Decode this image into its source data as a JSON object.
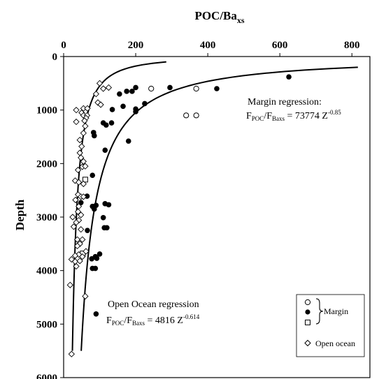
{
  "chart_data": {
    "type": "scatter",
    "title": "",
    "xlabel_main": "POC/Ba",
    "xlabel_sub": "xs",
    "ylabel": "Depth",
    "xlim": [
      0,
      850
    ],
    "ylim": [
      0,
      6000
    ],
    "y_inverted": true,
    "x_axis_position": "top",
    "xticks": [
      0,
      200,
      400,
      600,
      800
    ],
    "yticks": [
      0,
      1000,
      2000,
      3000,
      4000,
      5000,
      6000
    ],
    "xtick_labels": [
      "0",
      "200",
      "400",
      "600",
      "800"
    ],
    "ytick_labels": [
      "0",
      "1000",
      "2000",
      "3000",
      "4000",
      "5000",
      "6000"
    ],
    "grid": false,
    "legend_position": "bottom-right",
    "series": [
      {
        "name": "",
        "group": "margin",
        "marker": "open-circle",
        "points": [
          [
            243,
            600
          ],
          [
            368,
            600
          ],
          [
            340,
            1100
          ],
          [
            368,
            1100
          ]
        ]
      },
      {
        "name": "",
        "group": "margin",
        "marker": "filled-circle",
        "points": [
          [
            625,
            380
          ],
          [
            425,
            600
          ],
          [
            200,
            580
          ],
          [
            295,
            580
          ],
          [
            175,
            650
          ],
          [
            190,
            650
          ],
          [
            155,
            700
          ],
          [
            225,
            880
          ],
          [
            165,
            930
          ],
          [
            200,
            980
          ],
          [
            200,
            1030
          ],
          [
            135,
            990
          ],
          [
            110,
            1240
          ],
          [
            133,
            1240
          ],
          [
            118,
            1280
          ],
          [
            83,
            1420
          ],
          [
            85,
            1480
          ],
          [
            115,
            1750
          ],
          [
            180,
            1580
          ],
          [
            80,
            2220
          ],
          [
            48,
            2730
          ],
          [
            65,
            2610
          ],
          [
            90,
            2780
          ],
          [
            80,
            2800
          ],
          [
            85,
            2850
          ],
          [
            115,
            2750
          ],
          [
            125,
            2770
          ],
          [
            110,
            3010
          ],
          [
            113,
            3200
          ],
          [
            120,
            3200
          ],
          [
            66,
            3250
          ],
          [
            100,
            3690
          ],
          [
            88,
            3740
          ],
          [
            78,
            3780
          ],
          [
            92,
            3770
          ],
          [
            80,
            3960
          ],
          [
            88,
            3960
          ],
          [
            90,
            4810
          ]
        ]
      },
      {
        "name": "",
        "group": "margin",
        "marker": "open-square",
        "points": [
          [
            60,
            2300
          ],
          [
            53,
            3680
          ]
        ]
      },
      {
        "name": "Open ocean",
        "group": "open-ocean",
        "marker": "open-diamond",
        "points": [
          [
            100,
            500
          ],
          [
            110,
            600
          ],
          [
            125,
            580
          ],
          [
            90,
            700
          ],
          [
            95,
            860
          ],
          [
            103,
            900
          ],
          [
            55,
            970
          ],
          [
            66,
            970
          ],
          [
            35,
            1000
          ],
          [
            50,
            1050
          ],
          [
            55,
            1100
          ],
          [
            65,
            1100
          ],
          [
            62,
            1150
          ],
          [
            35,
            1220
          ],
          [
            58,
            1200
          ],
          [
            60,
            1300
          ],
          [
            55,
            1430
          ],
          [
            45,
            1560
          ],
          [
            50,
            1680
          ],
          [
            45,
            1800
          ],
          [
            48,
            1890
          ],
          [
            55,
            1960
          ],
          [
            52,
            2060
          ],
          [
            40,
            2120
          ],
          [
            60,
            2050
          ],
          [
            32,
            2320
          ],
          [
            42,
            2350
          ],
          [
            55,
            2380
          ],
          [
            40,
            2580
          ],
          [
            48,
            2620
          ],
          [
            55,
            2620
          ],
          [
            33,
            2680
          ],
          [
            42,
            2800
          ],
          [
            40,
            2900
          ],
          [
            48,
            2960
          ],
          [
            25,
            3000
          ],
          [
            42,
            3060
          ],
          [
            35,
            3100
          ],
          [
            28,
            3180
          ],
          [
            48,
            3230
          ],
          [
            38,
            3420
          ],
          [
            52,
            3420
          ],
          [
            45,
            3500
          ],
          [
            38,
            3540
          ],
          [
            62,
            3640
          ],
          [
            42,
            3700
          ],
          [
            32,
            3720
          ],
          [
            52,
            3740
          ],
          [
            22,
            3790
          ],
          [
            32,
            3830
          ],
          [
            45,
            3820
          ],
          [
            35,
            3920
          ],
          [
            18,
            4270
          ],
          [
            60,
            4480
          ],
          [
            22,
            5560
          ]
        ]
      }
    ],
    "regressions": [
      {
        "name": "Margin regression",
        "coef": 73774,
        "exponent": -0.85,
        "z_range": [
          200,
          5500
        ],
        "label_line1": "Margin regression:",
        "label_line2_prefix": "F",
        "label_line2_sub1": "POC",
        "label_line2_mid": "/F",
        "label_line2_sub2": "Baxs",
        "label_line2_rest": " = 73774 Z",
        "label_line2_exp": "-0.85"
      },
      {
        "name": "Open Ocean regression",
        "coef": 4816,
        "exponent": -0.614,
        "z_range": [
          100,
          5500
        ],
        "label_line1": "Open Ocean regression",
        "label_line2_prefix": "F",
        "label_line2_sub1": "POC",
        "label_line2_mid": "/F",
        "label_line2_sub2": "Baxs",
        "label_line2_rest": " = 4816 Z",
        "label_line2_exp": "-0.614"
      }
    ],
    "legend": {
      "margin_label": "Margin",
      "open_ocean_label": "Open ocean"
    }
  }
}
